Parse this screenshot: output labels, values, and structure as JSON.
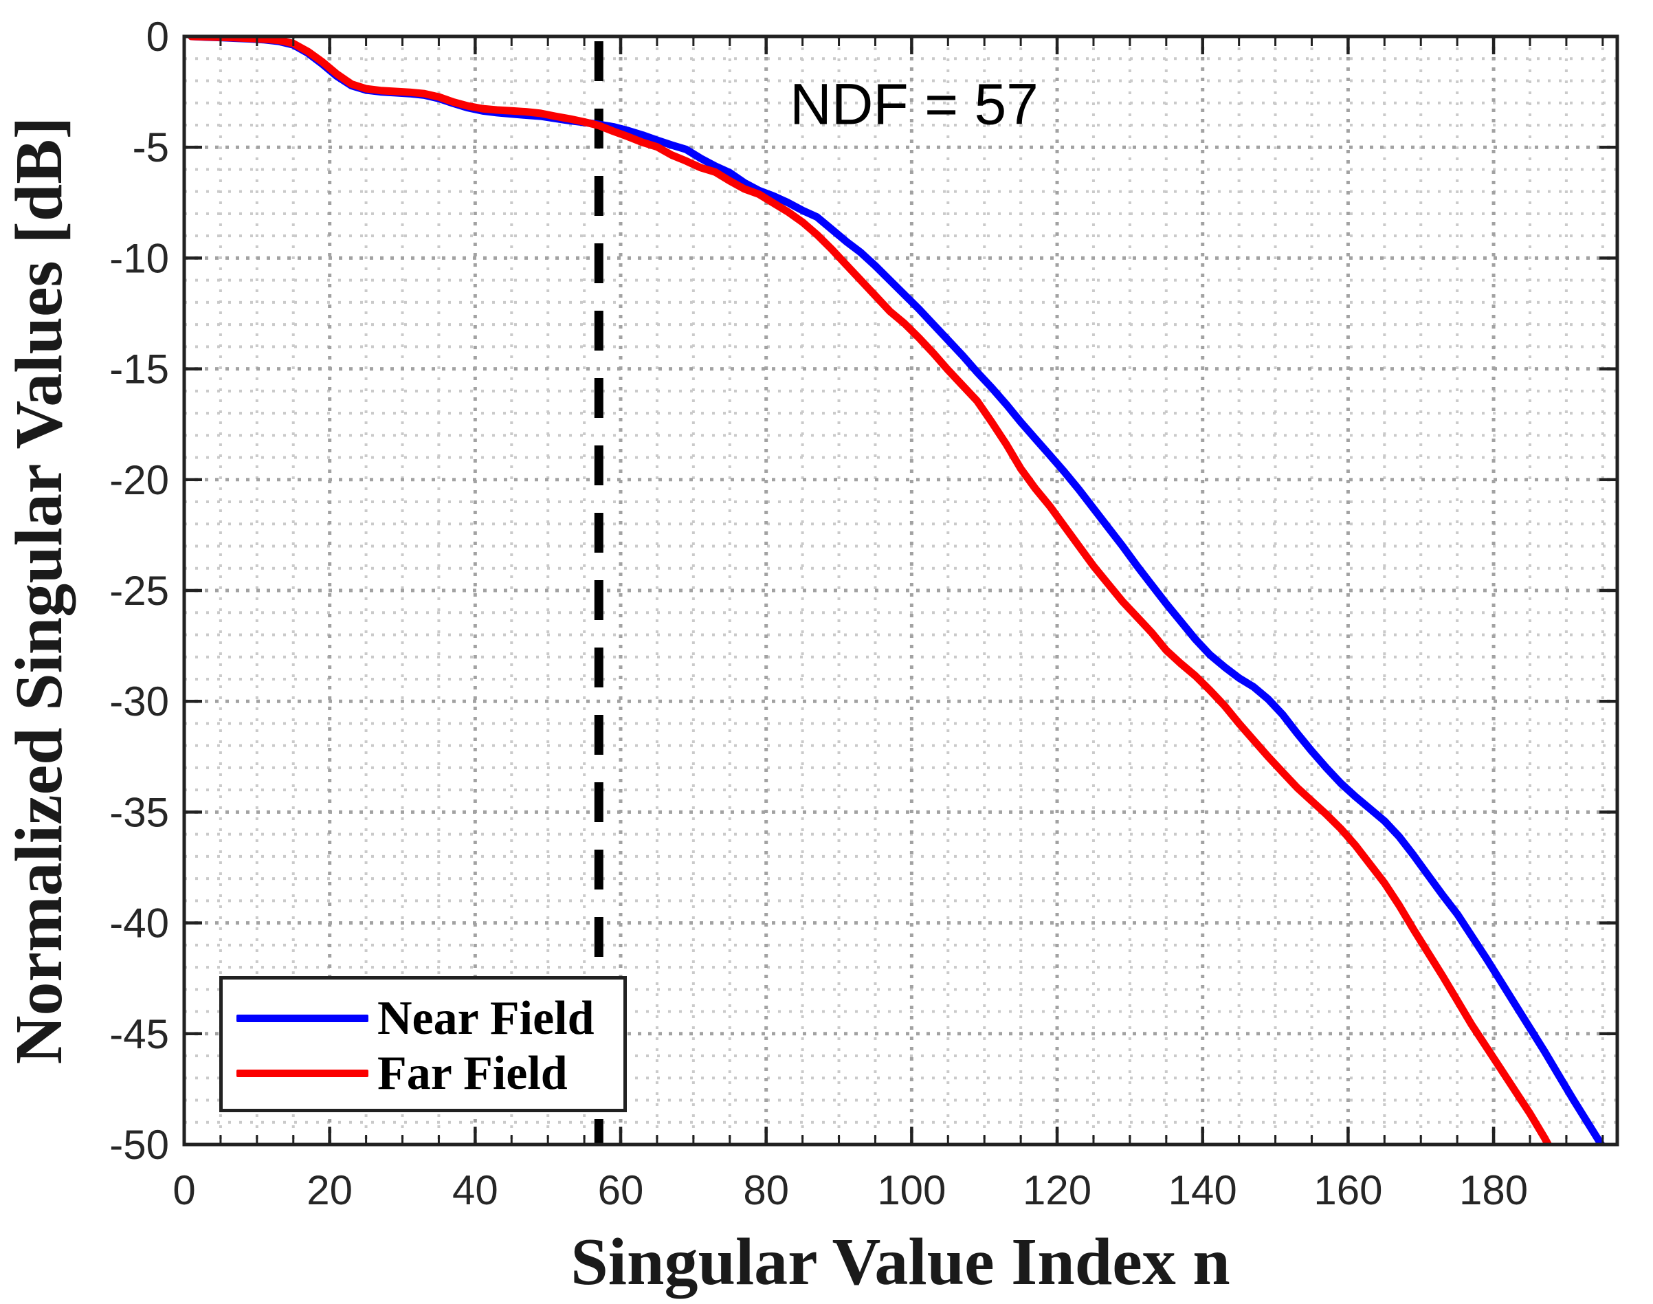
{
  "figure": {
    "background": "#ffffff",
    "axis_color": "#212121",
    "tick_label_color": "#262626"
  },
  "chart_data": {
    "type": "line",
    "title": "",
    "xlabel": "Singular Value Index n",
    "ylabel": "Normalized Singular Values [dB]",
    "xlim": [
      0,
      197
    ],
    "ylim": [
      -50,
      0
    ],
    "xticks": [
      0,
      20,
      40,
      60,
      80,
      100,
      120,
      140,
      160,
      180
    ],
    "yticks": [
      0,
      -5,
      -10,
      -15,
      -20,
      -25,
      -30,
      -35,
      -40,
      -45,
      -50
    ],
    "x_minor_step": 5,
    "y_minor_step": 1,
    "grid": {
      "minor_color": "#cacaca",
      "major_color": "#a2a2a2",
      "style": "dotted",
      "minor_on": true,
      "major_on": true
    },
    "annotation": {
      "text": "NDF = 57",
      "x_n": 100.3,
      "y_db": -3.1
    },
    "ndf_line": {
      "x": 57,
      "color": "#000000",
      "style": "dashed"
    },
    "legend": {
      "position": "southwest",
      "entries": [
        "Near Field",
        "Far Field"
      ]
    },
    "series": [
      {
        "name": "Near Field",
        "color": "#0000fe",
        "points": [
          [
            1,
            0
          ],
          [
            3,
            -0.03
          ],
          [
            5,
            -0.05
          ],
          [
            7,
            -0.08
          ],
          [
            9,
            -0.11
          ],
          [
            11,
            -0.15
          ],
          [
            13,
            -0.22
          ],
          [
            15,
            -0.38
          ],
          [
            17,
            -0.75
          ],
          [
            19,
            -1.25
          ],
          [
            21,
            -1.8
          ],
          [
            23,
            -2.22
          ],
          [
            25,
            -2.42
          ],
          [
            27,
            -2.5
          ],
          [
            29,
            -2.54
          ],
          [
            31,
            -2.58
          ],
          [
            33,
            -2.65
          ],
          [
            35,
            -2.8
          ],
          [
            37,
            -3.02
          ],
          [
            39,
            -3.22
          ],
          [
            41,
            -3.36
          ],
          [
            43,
            -3.44
          ],
          [
            45,
            -3.5
          ],
          [
            47,
            -3.55
          ],
          [
            49,
            -3.6
          ],
          [
            51,
            -3.7
          ],
          [
            53,
            -3.8
          ],
          [
            55,
            -3.88
          ],
          [
            57,
            -3.97
          ],
          [
            59,
            -4.08
          ],
          [
            61,
            -4.25
          ],
          [
            63,
            -4.45
          ],
          [
            65,
            -4.68
          ],
          [
            67,
            -4.9
          ],
          [
            69,
            -5.1
          ],
          [
            71,
            -5.5
          ],
          [
            73,
            -5.85
          ],
          [
            75,
            -6.15
          ],
          [
            77,
            -6.6
          ],
          [
            79,
            -6.95
          ],
          [
            81,
            -7.2
          ],
          [
            83,
            -7.5
          ],
          [
            85,
            -7.85
          ],
          [
            87,
            -8.15
          ],
          [
            89,
            -8.7
          ],
          [
            91,
            -9.25
          ],
          [
            93,
            -9.75
          ],
          [
            95,
            -10.35
          ],
          [
            97,
            -11.0
          ],
          [
            99,
            -11.65
          ],
          [
            101,
            -12.3
          ],
          [
            103,
            -13.0
          ],
          [
            105,
            -13.7
          ],
          [
            107,
            -14.4
          ],
          [
            109,
            -15.15
          ],
          [
            111,
            -15.85
          ],
          [
            113,
            -16.6
          ],
          [
            115,
            -17.4
          ],
          [
            117,
            -18.15
          ],
          [
            119,
            -18.9
          ],
          [
            121,
            -19.65
          ],
          [
            123,
            -20.45
          ],
          [
            125,
            -21.3
          ],
          [
            127,
            -22.15
          ],
          [
            129,
            -23.0
          ],
          [
            131,
            -23.9
          ],
          [
            133,
            -24.75
          ],
          [
            135,
            -25.6
          ],
          [
            137,
            -26.4
          ],
          [
            139,
            -27.2
          ],
          [
            141,
            -27.9
          ],
          [
            143,
            -28.45
          ],
          [
            145,
            -28.95
          ],
          [
            147,
            -29.35
          ],
          [
            149,
            -29.9
          ],
          [
            151,
            -30.6
          ],
          [
            153,
            -31.45
          ],
          [
            155,
            -32.25
          ],
          [
            157,
            -33.0
          ],
          [
            159,
            -33.7
          ],
          [
            161,
            -34.3
          ],
          [
            163,
            -34.85
          ],
          [
            165,
            -35.4
          ],
          [
            167,
            -36.1
          ],
          [
            169,
            -36.95
          ],
          [
            171,
            -37.85
          ],
          [
            173,
            -38.75
          ],
          [
            175,
            -39.6
          ],
          [
            177,
            -40.6
          ],
          [
            179,
            -41.6
          ],
          [
            181,
            -42.65
          ],
          [
            183,
            -43.7
          ],
          [
            185,
            -44.75
          ],
          [
            187,
            -45.8
          ],
          [
            189,
            -46.9
          ],
          [
            191,
            -48.0
          ],
          [
            193,
            -49.05
          ],
          [
            195,
            -50.1
          ],
          [
            196,
            -50.6
          ]
        ]
      },
      {
        "name": "Far Field",
        "color": "#fb0000",
        "points": [
          [
            1,
            0
          ],
          [
            3,
            -0.02
          ],
          [
            5,
            -0.04
          ],
          [
            7,
            -0.06
          ],
          [
            9,
            -0.09
          ],
          [
            11,
            -0.12
          ],
          [
            13,
            -0.18
          ],
          [
            15,
            -0.32
          ],
          [
            17,
            -0.68
          ],
          [
            19,
            -1.15
          ],
          [
            21,
            -1.7
          ],
          [
            23,
            -2.15
          ],
          [
            25,
            -2.36
          ],
          [
            27,
            -2.44
          ],
          [
            29,
            -2.48
          ],
          [
            31,
            -2.52
          ],
          [
            33,
            -2.58
          ],
          [
            35,
            -2.73
          ],
          [
            37,
            -2.96
          ],
          [
            39,
            -3.14
          ],
          [
            41,
            -3.26
          ],
          [
            43,
            -3.32
          ],
          [
            45,
            -3.36
          ],
          [
            47,
            -3.4
          ],
          [
            49,
            -3.47
          ],
          [
            51,
            -3.6
          ],
          [
            53,
            -3.72
          ],
          [
            55,
            -3.86
          ],
          [
            57,
            -4.02
          ],
          [
            59,
            -4.28
          ],
          [
            61,
            -4.52
          ],
          [
            63,
            -4.78
          ],
          [
            65,
            -4.98
          ],
          [
            67,
            -5.35
          ],
          [
            69,
            -5.62
          ],
          [
            71,
            -5.92
          ],
          [
            73,
            -6.12
          ],
          [
            75,
            -6.52
          ],
          [
            77,
            -6.88
          ],
          [
            79,
            -7.12
          ],
          [
            81,
            -7.52
          ],
          [
            83,
            -7.92
          ],
          [
            85,
            -8.38
          ],
          [
            87,
            -8.95
          ],
          [
            89,
            -9.6
          ],
          [
            91,
            -10.3
          ],
          [
            93,
            -11.0
          ],
          [
            95,
            -11.7
          ],
          [
            97,
            -12.4
          ],
          [
            99,
            -12.95
          ],
          [
            101,
            -13.6
          ],
          [
            103,
            -14.3
          ],
          [
            105,
            -15.05
          ],
          [
            107,
            -15.75
          ],
          [
            109,
            -16.45
          ],
          [
            111,
            -17.4
          ],
          [
            113,
            -18.4
          ],
          [
            115,
            -19.5
          ],
          [
            117,
            -20.4
          ],
          [
            119,
            -21.2
          ],
          [
            121,
            -22.1
          ],
          [
            123,
            -23.0
          ],
          [
            125,
            -23.9
          ],
          [
            127,
            -24.7
          ],
          [
            129,
            -25.5
          ],
          [
            131,
            -26.2
          ],
          [
            133,
            -26.9
          ],
          [
            135,
            -27.7
          ],
          [
            137,
            -28.3
          ],
          [
            139,
            -28.85
          ],
          [
            141,
            -29.5
          ],
          [
            143,
            -30.2
          ],
          [
            145,
            -31.0
          ],
          [
            147,
            -31.75
          ],
          [
            149,
            -32.5
          ],
          [
            151,
            -33.2
          ],
          [
            153,
            -33.9
          ],
          [
            155,
            -34.5
          ],
          [
            157,
            -35.1
          ],
          [
            159,
            -35.75
          ],
          [
            161,
            -36.5
          ],
          [
            163,
            -37.35
          ],
          [
            165,
            -38.2
          ],
          [
            167,
            -39.2
          ],
          [
            169,
            -40.3
          ],
          [
            171,
            -41.35
          ],
          [
            173,
            -42.4
          ],
          [
            175,
            -43.5
          ],
          [
            177,
            -44.6
          ],
          [
            179,
            -45.6
          ],
          [
            181,
            -46.6
          ],
          [
            183,
            -47.6
          ],
          [
            185,
            -48.6
          ],
          [
            187,
            -49.7
          ],
          [
            188,
            -50.3
          ]
        ]
      }
    ]
  }
}
